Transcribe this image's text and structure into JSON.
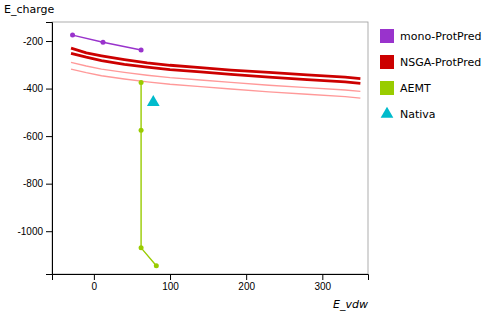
{
  "chart_data": {
    "type": "line",
    "xlabel": "E_vdw",
    "ylabel": "E_charge",
    "xlim": [
      -55,
      360
    ],
    "ylim": [
      -1180,
      -120
    ],
    "xticks": [
      0,
      100,
      200,
      300
    ],
    "yticks": [
      -200,
      -400,
      -600,
      -800,
      -1000
    ],
    "series": [
      {
        "name": "mono-ProtPred",
        "type": "line",
        "marker": "circle",
        "line_style": "solid",
        "color": "#9933cc",
        "x": [
          -28,
          12,
          62
        ],
        "values": [
          -175,
          -205,
          -238
        ]
      },
      {
        "name": "NSGA-ProtPred",
        "type": "line",
        "line_style": "thick",
        "color": "#cc0000",
        "x": [
          -30,
          -10,
          10,
          40,
          70,
          100,
          140,
          180,
          230,
          280,
          330,
          350
        ],
        "values": [
          -230,
          -250,
          -262,
          -278,
          -292,
          -302,
          -312,
          -322,
          -332,
          -342,
          -352,
          -358
        ]
      },
      {
        "type": "line",
        "line_style": "thick",
        "color": "#cc0000",
        "x": [
          -30,
          -10,
          10,
          40,
          70,
          100,
          140,
          180,
          230,
          280,
          330,
          350
        ],
        "values": [
          -252,
          -268,
          -282,
          -298,
          -310,
          -320,
          -330,
          -340,
          -352,
          -362,
          -372,
          -378
        ]
      },
      {
        "type": "line",
        "line_style": "solid",
        "color": "#ff9999",
        "x": [
          -30,
          -10,
          10,
          40,
          70,
          100,
          140,
          180,
          230,
          280,
          330,
          350
        ],
        "values": [
          -290,
          -305,
          -318,
          -332,
          -344,
          -354,
          -364,
          -374,
          -386,
          -396,
          -406,
          -412
        ]
      },
      {
        "type": "line",
        "line_style": "solid",
        "color": "#ff9999",
        "x": [
          -30,
          -10,
          10,
          40,
          70,
          100,
          140,
          180,
          230,
          280,
          330,
          350
        ],
        "values": [
          -318,
          -333,
          -346,
          -360,
          -372,
          -382,
          -392,
          -402,
          -414,
          -424,
          -434,
          -440
        ]
      },
      {
        "name": "AEMT",
        "type": "line",
        "marker": "circle",
        "line_style": "solid",
        "color": "#99cc00",
        "x": [
          62,
          62,
          62,
          82
        ],
        "values": [
          -375,
          -575,
          -1070,
          -1145
        ]
      },
      {
        "name": "Nativa",
        "type": "scatter",
        "marker": "triangle",
        "color": "#00bbcc",
        "x": [
          78
        ],
        "values": [
          -458
        ]
      }
    ],
    "legend": "right"
  }
}
